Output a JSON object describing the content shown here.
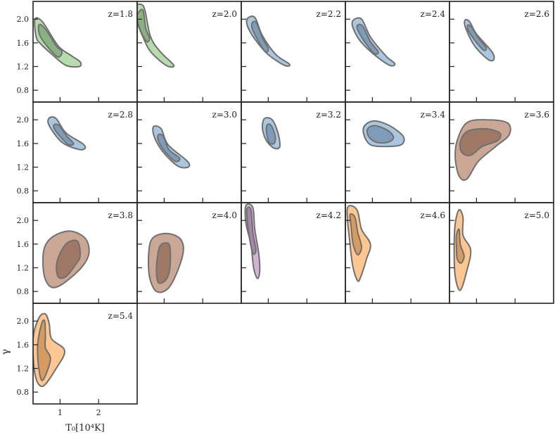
{
  "chart_data": {
    "type": "contour",
    "xlabel": "T₀[10⁴K]",
    "ylabel": "γ",
    "xlim": [
      0.3,
      3.0
    ],
    "ylim": [
      0.6,
      2.3
    ],
    "xticks": [
      1,
      2
    ],
    "yticks": [
      0.8,
      1.2,
      1.6,
      2.0
    ],
    "ytick_labels": [
      "0.8",
      "1.2",
      "1.6",
      "2.0"
    ],
    "xtick_labels": [
      "1",
      "2"
    ],
    "grid": false,
    "colors": {
      "green": "#9ecf92",
      "blue": "#8fb4d6",
      "brown": "#b98a72",
      "purple": "#c39ac8",
      "orange": "#fdb36b",
      "outline": "#707070"
    },
    "panels": [
      {
        "label": "z=1.8",
        "color": "green",
        "outer": [
          [
            0.35,
            2.0
          ],
          [
            0.55,
            1.95
          ],
          [
            0.95,
            1.55
          ],
          [
            1.3,
            1.38
          ],
          [
            1.52,
            1.28
          ],
          [
            1.5,
            1.2
          ],
          [
            1.15,
            1.22
          ],
          [
            0.8,
            1.4
          ],
          [
            0.5,
            1.58
          ],
          [
            0.38,
            1.7
          ]
        ],
        "inner": [
          [
            0.45,
            1.9
          ],
          [
            0.6,
            1.85
          ],
          [
            0.9,
            1.55
          ],
          [
            1.05,
            1.45
          ],
          [
            0.95,
            1.36
          ],
          [
            0.72,
            1.5
          ],
          [
            0.48,
            1.72
          ]
        ]
      },
      {
        "label": "z=2.0",
        "color": "green",
        "outer": [
          [
            0.22,
            2.2
          ],
          [
            0.4,
            2.25
          ],
          [
            0.5,
            2.15
          ],
          [
            0.65,
            1.7
          ],
          [
            0.9,
            1.45
          ],
          [
            1.25,
            1.22
          ],
          [
            1.05,
            1.22
          ],
          [
            0.65,
            1.45
          ],
          [
            0.45,
            1.7
          ],
          [
            0.3,
            1.95
          ]
        ],
        "inner": [
          [
            0.32,
            2.1
          ],
          [
            0.45,
            2.15
          ],
          [
            0.52,
            1.85
          ],
          [
            0.62,
            1.68
          ],
          [
            0.55,
            1.62
          ],
          [
            0.4,
            1.78
          ],
          [
            0.3,
            2.0
          ]
        ]
      },
      {
        "label": "z=2.2",
        "color": "blue",
        "outer": [
          [
            0.45,
            2.0
          ],
          [
            0.65,
            2.03
          ],
          [
            0.85,
            1.72
          ],
          [
            1.2,
            1.4
          ],
          [
            1.55,
            1.24
          ],
          [
            1.42,
            1.22
          ],
          [
            1.0,
            1.4
          ],
          [
            0.7,
            1.62
          ],
          [
            0.48,
            1.85
          ]
        ],
        "inner": [
          [
            0.6,
            1.95
          ],
          [
            0.7,
            1.93
          ],
          [
            0.85,
            1.68
          ],
          [
            1.0,
            1.5
          ],
          [
            0.92,
            1.45
          ],
          [
            0.75,
            1.62
          ],
          [
            0.58,
            1.85
          ]
        ]
      },
      {
        "label": "z=2.4",
        "color": "blue",
        "outer": [
          [
            0.5,
            1.98
          ],
          [
            0.72,
            2.0
          ],
          [
            0.95,
            1.7
          ],
          [
            1.35,
            1.38
          ],
          [
            1.58,
            1.25
          ],
          [
            1.45,
            1.22
          ],
          [
            1.05,
            1.4
          ],
          [
            0.7,
            1.62
          ],
          [
            0.5,
            1.85
          ]
        ],
        "inner": [
          [
            0.62,
            1.9
          ],
          [
            0.75,
            1.88
          ],
          [
            0.95,
            1.62
          ],
          [
            1.15,
            1.45
          ],
          [
            1.05,
            1.42
          ],
          [
            0.82,
            1.6
          ],
          [
            0.62,
            1.82
          ]
        ]
      },
      {
        "label": "z=2.6",
        "color": "blue",
        "outer": [
          [
            0.7,
            1.98
          ],
          [
            0.82,
            1.96
          ],
          [
            1.0,
            1.75
          ],
          [
            1.4,
            1.45
          ],
          [
            1.45,
            1.32
          ],
          [
            1.3,
            1.32
          ],
          [
            0.95,
            1.55
          ],
          [
            0.72,
            1.85
          ]
        ],
        "inner": [
          [
            0.78,
            1.9
          ],
          [
            0.88,
            1.86
          ],
          [
            1.05,
            1.68
          ],
          [
            1.25,
            1.52
          ],
          [
            1.18,
            1.48
          ],
          [
            0.95,
            1.65
          ],
          [
            0.78,
            1.82
          ]
        ]
      },
      {
        "label": "z=2.8",
        "color": "blue",
        "outer": [
          [
            0.72,
            2.03
          ],
          [
            0.9,
            2.02
          ],
          [
            1.15,
            1.78
          ],
          [
            1.58,
            1.6
          ],
          [
            1.65,
            1.52
          ],
          [
            1.48,
            1.5
          ],
          [
            1.05,
            1.62
          ],
          [
            0.72,
            1.9
          ]
        ],
        "inner": [
          [
            0.85,
            1.92
          ],
          [
            0.98,
            1.9
          ],
          [
            1.18,
            1.72
          ],
          [
            1.35,
            1.6
          ],
          [
            1.22,
            1.58
          ],
          [
            1.0,
            1.72
          ],
          [
            0.85,
            1.85
          ]
        ]
      },
      {
        "label": "z=3.0",
        "color": "blue",
        "outer": [
          [
            0.72,
            1.88
          ],
          [
            0.92,
            1.85
          ],
          [
            1.1,
            1.58
          ],
          [
            1.6,
            1.3
          ],
          [
            1.62,
            1.2
          ],
          [
            1.35,
            1.22
          ],
          [
            0.98,
            1.45
          ],
          [
            0.75,
            1.7
          ]
        ],
        "inner": [
          [
            0.85,
            1.75
          ],
          [
            0.98,
            1.72
          ],
          [
            1.12,
            1.5
          ],
          [
            1.4,
            1.35
          ],
          [
            1.28,
            1.3
          ],
          [
            1.0,
            1.48
          ],
          [
            0.85,
            1.65
          ]
        ]
      },
      {
        "label": "z=3.2",
        "color": "blue",
        "outer": [
          [
            0.9,
            2.02
          ],
          [
            1.1,
            2.0
          ],
          [
            1.25,
            1.78
          ],
          [
            1.3,
            1.55
          ],
          [
            1.15,
            1.52
          ],
          [
            0.95,
            1.65
          ],
          [
            0.85,
            1.85
          ]
        ],
        "inner": [
          [
            0.98,
            1.92
          ],
          [
            1.08,
            1.9
          ],
          [
            1.18,
            1.72
          ],
          [
            1.15,
            1.6
          ],
          [
            1.02,
            1.62
          ],
          [
            0.95,
            1.82
          ]
        ]
      },
      {
        "label": "z=3.4",
        "color": "blue",
        "outer": [
          [
            0.8,
            1.9
          ],
          [
            1.05,
            1.98
          ],
          [
            1.45,
            1.9
          ],
          [
            1.8,
            1.72
          ],
          [
            1.75,
            1.58
          ],
          [
            1.35,
            1.55
          ],
          [
            0.95,
            1.58
          ],
          [
            0.78,
            1.75
          ]
        ],
        "inner": [
          [
            0.88,
            1.85
          ],
          [
            1.08,
            1.9
          ],
          [
            1.4,
            1.82
          ],
          [
            1.55,
            1.7
          ],
          [
            1.4,
            1.62
          ],
          [
            1.1,
            1.62
          ],
          [
            0.9,
            1.72
          ]
        ]
      },
      {
        "label": "z=3.6",
        "color": "brown",
        "outer": [
          [
            0.5,
            1.65
          ],
          [
            0.75,
            1.95
          ],
          [
            1.25,
            2.0
          ],
          [
            1.8,
            1.95
          ],
          [
            1.85,
            1.75
          ],
          [
            1.5,
            1.55
          ],
          [
            1.05,
            1.3
          ],
          [
            0.75,
            1.0
          ],
          [
            0.55,
            1.05
          ],
          [
            0.45,
            1.35
          ]
        ],
        "inner": [
          [
            0.58,
            1.62
          ],
          [
            0.75,
            1.8
          ],
          [
            1.2,
            1.85
          ],
          [
            1.6,
            1.78
          ],
          [
            1.55,
            1.65
          ],
          [
            1.15,
            1.55
          ],
          [
            0.85,
            1.4
          ],
          [
            0.62,
            1.45
          ]
        ]
      },
      {
        "label": "z=3.8",
        "color": "brown",
        "outer": [
          [
            0.58,
            1.5
          ],
          [
            0.8,
            1.72
          ],
          [
            1.25,
            1.82
          ],
          [
            1.65,
            1.7
          ],
          [
            1.75,
            1.45
          ],
          [
            1.55,
            1.2
          ],
          [
            1.05,
            0.92
          ],
          [
            0.75,
            0.88
          ],
          [
            0.58,
            1.1
          ]
        ],
        "inner": [
          [
            0.92,
            1.3
          ],
          [
            1.15,
            1.6
          ],
          [
            1.45,
            1.65
          ],
          [
            1.52,
            1.4
          ],
          [
            1.4,
            1.25
          ],
          [
            1.15,
            1.05
          ],
          [
            0.95,
            1.05
          ]
        ]
      },
      {
        "label": "z=4.0",
        "color": "brown",
        "outer": [
          [
            0.6,
            1.45
          ],
          [
            0.7,
            1.7
          ],
          [
            1.05,
            1.78
          ],
          [
            1.4,
            1.7
          ],
          [
            1.5,
            1.5
          ],
          [
            1.35,
            1.15
          ],
          [
            1.1,
            0.85
          ],
          [
            0.8,
            0.8
          ],
          [
            0.62,
            1.05
          ]
        ],
        "inner": [
          [
            0.8,
            1.2
          ],
          [
            0.88,
            1.55
          ],
          [
            1.05,
            1.62
          ],
          [
            1.15,
            1.55
          ],
          [
            1.15,
            1.2
          ],
          [
            1.05,
            1.0
          ],
          [
            0.85,
            0.95
          ]
        ]
      },
      {
        "label": "z=4.2",
        "color": "purple",
        "outer": [
          [
            0.42,
            2.25
          ],
          [
            0.6,
            2.22
          ],
          [
            0.65,
            1.85
          ],
          [
            0.75,
            1.45
          ],
          [
            0.78,
            1.15
          ],
          [
            0.72,
            1.02
          ],
          [
            0.62,
            1.2
          ],
          [
            0.55,
            1.6
          ],
          [
            0.42,
            1.95
          ]
        ],
        "inner": [
          [
            0.45,
            2.2
          ],
          [
            0.55,
            2.18
          ],
          [
            0.6,
            1.8
          ],
          [
            0.68,
            1.5
          ],
          [
            0.6,
            1.45
          ],
          [
            0.5,
            1.75
          ],
          [
            0.45,
            2.05
          ]
        ]
      },
      {
        "label": "z=4.6",
        "color": "orange",
        "outer": [
          [
            0.35,
            2.2
          ],
          [
            0.6,
            2.18
          ],
          [
            0.72,
            1.85
          ],
          [
            0.95,
            1.6
          ],
          [
            0.85,
            1.35
          ],
          [
            0.7,
            1.05
          ],
          [
            0.62,
            0.98
          ],
          [
            0.5,
            1.2
          ],
          [
            0.42,
            1.6
          ]
        ],
        "inner": [
          [
            0.42,
            2.1
          ],
          [
            0.55,
            2.05
          ],
          [
            0.62,
            1.8
          ],
          [
            0.72,
            1.55
          ],
          [
            0.62,
            1.42
          ],
          [
            0.5,
            1.6
          ],
          [
            0.45,
            1.9
          ]
        ]
      },
      {
        "label": "z=5.0",
        "color": "orange",
        "outer": [
          [
            0.45,
            1.95
          ],
          [
            0.55,
            2.18
          ],
          [
            0.65,
            2.05
          ],
          [
            0.65,
            1.75
          ],
          [
            0.85,
            1.5
          ],
          [
            0.75,
            1.15
          ],
          [
            0.58,
            0.82
          ],
          [
            0.45,
            1.05
          ],
          [
            0.42,
            1.5
          ]
        ],
        "inner": [
          [
            0.48,
            1.75
          ],
          [
            0.55,
            1.85
          ],
          [
            0.58,
            1.6
          ],
          [
            0.68,
            1.4
          ],
          [
            0.6,
            1.28
          ],
          [
            0.5,
            1.35
          ],
          [
            0.48,
            1.55
          ]
        ]
      },
      {
        "label": "z=5.4",
        "color": "orange",
        "outer": [
          [
            0.3,
            1.7
          ],
          [
            0.45,
            2.05
          ],
          [
            0.62,
            2.12
          ],
          [
            0.72,
            1.95
          ],
          [
            0.78,
            1.7
          ],
          [
            1.12,
            1.5
          ],
          [
            0.9,
            1.2
          ],
          [
            0.55,
            0.9
          ],
          [
            0.35,
            1.1
          ]
        ],
        "inner": [
          [
            0.42,
            1.6
          ],
          [
            0.52,
            1.95
          ],
          [
            0.6,
            2.0
          ],
          [
            0.62,
            1.75
          ],
          [
            0.62,
            1.55
          ],
          [
            0.75,
            1.35
          ],
          [
            0.55,
            1.0
          ],
          [
            0.45,
            1.2
          ]
        ]
      }
    ]
  }
}
